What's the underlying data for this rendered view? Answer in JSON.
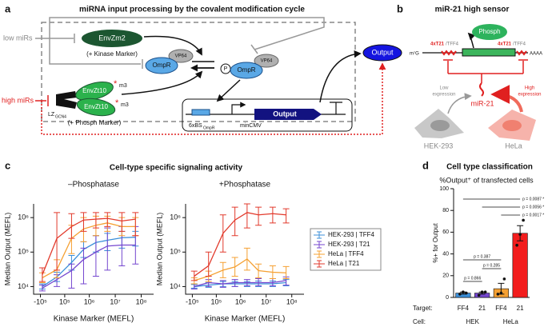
{
  "panels": {
    "a": {
      "letter": "a",
      "title": "miRNA input processing by the covalent modification cycle",
      "low_mirs": "low miRs",
      "envzm2": "EnvZm2",
      "kinase_marker": "(+ Kinase Marker)",
      "vp64_1": "VP64",
      "ompr_1": "OmpR",
      "p": "P",
      "vp64_2": "VP64",
      "ompr_2": "OmpR",
      "output_protein": "Output",
      "high_mirs": "high miRs",
      "envzt10_1": "EnvZt10",
      "envzt10_2": "EnvZt10",
      "m3_1": "m3",
      "m3_2": "m3",
      "lz": "LZ",
      "lz_sub": "GCN4",
      "phosph_marker": "(+ Phosph Marker)",
      "bs": "6xBS",
      "bs_sub": "OmpR",
      "mincmv": "minCMV",
      "output_gene": "Output"
    },
    "b": {
      "letter": "b",
      "title": "miR-21 high sensor",
      "phosph": "Phosph",
      "site1": "4xT21",
      "site1_alt": "/TFF4",
      "site2": "4xT21",
      "site2_alt": "/TFF4",
      "cap": "m⁷G",
      "tail": "AAAA",
      "low_expression": [
        "Low",
        "expression"
      ],
      "high_expression": [
        "High",
        "expression"
      ],
      "mir": "miR-21",
      "cell1": "HEK-293",
      "cell2": "HeLa"
    },
    "c": {
      "letter": "c",
      "title": "Cell-type specific signaling activity"
    },
    "d": {
      "letter": "d"
    }
  },
  "chart_data": [
    {
      "type": "line",
      "title": "–Phosphatase",
      "xlabel": "Kinase Marker (MEFL)",
      "ylabel": "Median Output (MEFL)",
      "xscale": "asinh",
      "yscale": "log",
      "xlim": [
        -200000,
        300000000
      ],
      "ylim": [
        6000,
        2500000
      ],
      "xticks": [
        {
          "value": -100000,
          "label": "-10⁵"
        },
        {
          "value": 100000,
          "label": "10⁵"
        },
        {
          "value": 1000000,
          "label": "10⁶"
        },
        {
          "value": 10000000,
          "label": "10⁷"
        },
        {
          "value": 100000000,
          "label": "10⁸"
        }
      ],
      "yticks": [
        {
          "value": 10000,
          "label": "10⁴"
        },
        {
          "value": 100000,
          "label": "10⁵"
        },
        {
          "value": 1000000,
          "label": "10⁶"
        }
      ],
      "x": [
        -80000,
        30000,
        200000,
        600000,
        1800000,
        5000000,
        18000000,
        60000000
      ],
      "series": [
        {
          "color": "#3b8fd9",
          "values": [
            10000,
            19000,
            50000,
            120000,
            190000,
            220000,
            260000,
            270000
          ],
          "lower": [
            8500,
            14000,
            30000,
            70000,
            100000,
            110000,
            130000,
            150000
          ],
          "upper": [
            12000,
            26000,
            80000,
            200000,
            300000,
            350000,
            400000,
            400000
          ]
        },
        {
          "color": "#7446cf",
          "values": [
            9000,
            16000,
            29000,
            61000,
            100000,
            150000,
            160000,
            160000
          ],
          "lower": [
            7500,
            10000,
            9000,
            12000,
            20000,
            30000,
            40000,
            45000
          ],
          "upper": [
            11000,
            22000,
            45000,
            130000,
            300000,
            500000,
            550000,
            550000
          ]
        },
        {
          "color": "#f5a032",
          "values": [
            18000,
            31000,
            250000,
            470000,
            600000,
            700000,
            550000,
            550000
          ],
          "lower": [
            13000,
            18000,
            90000,
            200000,
            300000,
            400000,
            300000,
            300000
          ],
          "upper": [
            25000,
            60000,
            600000,
            1000000,
            1100000,
            1100000,
            1000000,
            1000000
          ]
        },
        {
          "color": "#e23a2c",
          "values": [
            22000,
            250000,
            550000,
            850000,
            900000,
            950000,
            800000,
            900000
          ],
          "lower": [
            14000,
            30000,
            250000,
            400000,
            500000,
            550000,
            400000,
            300000
          ],
          "upper": [
            35000,
            1400000,
            1300000,
            1400000,
            1400000,
            1400000,
            1400000,
            1400000
          ]
        }
      ]
    },
    {
      "type": "line",
      "title": "+Phosphatase",
      "xlabel": "Kinase Marker (MEFL)",
      "ylabel": "Median Output (MEFL)",
      "xscale": "asinh",
      "yscale": "log",
      "xlim": [
        -200000,
        300000000
      ],
      "ylim": [
        6000,
        2500000
      ],
      "xticks": [
        {
          "value": -100000,
          "label": "-10⁵"
        },
        {
          "value": 100000,
          "label": "10⁵"
        },
        {
          "value": 1000000,
          "label": "10⁶"
        },
        {
          "value": 10000000,
          "label": "10⁷"
        },
        {
          "value": 100000000,
          "label": "10⁸"
        }
      ],
      "yticks": [
        {
          "value": 10000,
          "label": "10⁴"
        },
        {
          "value": 100000,
          "label": "10⁵"
        },
        {
          "value": 1000000,
          "label": "10⁶"
        }
      ],
      "x": [
        -80000,
        30000,
        200000,
        600000,
        1800000,
        5000000,
        18000000,
        60000000
      ],
      "legend": "right",
      "series": [
        {
          "name": "HEK-293 | TFF4",
          "color": "#3b8fd9",
          "values": [
            10000,
            11000,
            12000,
            12000,
            12000,
            12000,
            12000,
            13000
          ],
          "lower": [
            9000,
            9500,
            10000,
            10000,
            10000,
            10000,
            10000,
            10500
          ],
          "upper": [
            11500,
            13000,
            14000,
            14000,
            14000,
            14500,
            14500,
            16000
          ]
        },
        {
          "name": "HEK-293 | T21",
          "color": "#7446cf",
          "values": [
            10000,
            13000,
            12000,
            13000,
            13000,
            13000,
            13000,
            15000
          ],
          "lower": [
            8500,
            10000,
            9500,
            10000,
            10500,
            10500,
            10500,
            11000
          ],
          "upper": [
            12000,
            16000,
            15000,
            16000,
            16000,
            17000,
            17000,
            19000
          ]
        },
        {
          "name": "HeLa | TFF4",
          "color": "#f5a032",
          "values": [
            15000,
            20000,
            30000,
            37000,
            63000,
            29000,
            26000,
            25000
          ],
          "lower": [
            12000,
            14000,
            18000,
            20000,
            30000,
            18000,
            17000,
            17000
          ],
          "upper": [
            18000,
            28000,
            50000,
            70000,
            130000,
            45000,
            40000,
            38000
          ]
        },
        {
          "name": "HeLa | T21",
          "color": "#e23a2c",
          "values": [
            20000,
            40000,
            350000,
            850000,
            1400000,
            1200000,
            1300000,
            1200000
          ],
          "lower": [
            15000,
            20000,
            100000,
            300000,
            500000,
            600000,
            700000,
            700000
          ],
          "upper": [
            28000,
            100000,
            1200000,
            2000000,
            2500000,
            2000000,
            2000000,
            1800000
          ]
        }
      ]
    },
    {
      "type": "bar",
      "title": "Cell type classification",
      "subtitle": "%Output⁺ of transfected cells",
      "ylabel": "%+ for Output",
      "ylim": [
        0,
        100
      ],
      "yticks": [
        0,
        20,
        40,
        60,
        80,
        100
      ],
      "category_label": "Target:",
      "categories": [
        "FF4",
        "21",
        "FF4",
        "21"
      ],
      "group_label": "Cell:",
      "groups": [
        {
          "label": "HEK",
          "span": [
            0,
            1
          ]
        },
        {
          "label": "HeLa",
          "span": [
            2,
            3
          ]
        }
      ],
      "colors": [
        "#3b8fd9",
        "#7446cf",
        "#f5a032",
        "#f21d1d"
      ],
      "values": [
        4,
        4,
        8,
        59
      ],
      "errors": [
        1,
        1,
        5,
        7
      ],
      "points": [
        [
          3,
          5,
          4
        ],
        [
          2,
          5,
          5
        ],
        [
          3,
          4,
          17
        ],
        [
          48,
          58,
          71
        ]
      ],
      "comparisons": [
        {
          "pair": [
            0,
            3
          ],
          "label": "p = 0.0087 *"
        },
        {
          "pair": [
            1,
            3
          ],
          "label": "p = 0.0056 *"
        },
        {
          "pair": [
            2,
            3
          ],
          "label": "p = 0.0017 *"
        },
        {
          "pair": [
            0,
            2
          ],
          "label": "p = 0.387"
        },
        {
          "pair": [
            1,
            2
          ],
          "label": "p = 0.285"
        },
        {
          "pair": [
            0,
            1
          ],
          "label": "p = 0.866"
        }
      ]
    }
  ]
}
